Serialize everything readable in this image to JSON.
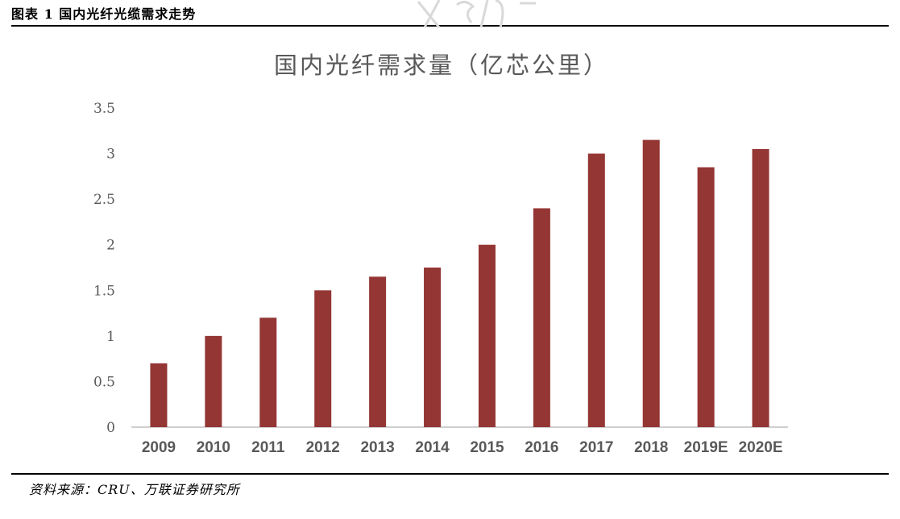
{
  "caption": "图表 1 国内光纤光缆需求走势",
  "source": "资料来源：CRU、万联证券研究所",
  "colors": {
    "bar": "#943634",
    "axis": "#bfbfbf",
    "text": "#595959"
  },
  "chart_data": {
    "type": "bar",
    "title": "国内光纤需求量（亿芯公里）",
    "xlabel": "",
    "ylabel": "",
    "categories": [
      "2009",
      "2010",
      "2011",
      "2012",
      "2013",
      "2014",
      "2015",
      "2016",
      "2017",
      "2018",
      "2019E",
      "2020E"
    ],
    "values": [
      0.7,
      1.0,
      1.2,
      1.5,
      1.65,
      1.75,
      2.0,
      2.4,
      3.0,
      3.15,
      2.85,
      3.05
    ],
    "ylim": [
      0,
      3.5
    ],
    "yticks": [
      "0",
      "0.5",
      "1",
      "1.5",
      "2",
      "2.5",
      "3",
      "3.5"
    ],
    "grid": false,
    "legend": "none"
  }
}
